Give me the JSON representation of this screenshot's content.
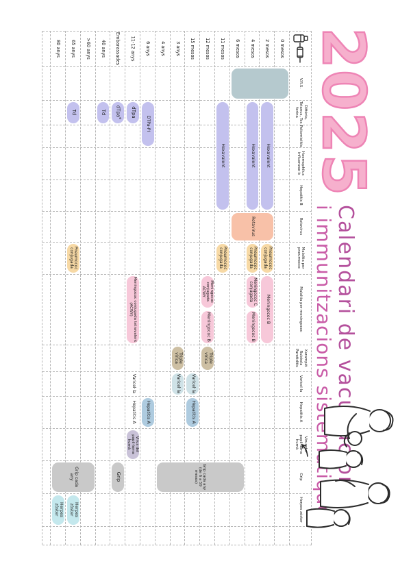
{
  "title": {
    "year": "2025",
    "line1": "Calendari de vacunacions",
    "line2": "i immunitzacions sistemàtiques"
  },
  "colors": {
    "vrs": "#b5c9ce",
    "purple": "#c3c1ee",
    "salmon": "#f8c1a8",
    "tan": "#f7d9a5",
    "pink": "#f7c8d9",
    "khaki": "#cdbfa3",
    "paleblue": "#cfe2e7",
    "steel": "#aecbdf",
    "lavender": "#c9c2d8",
    "gray": "#c9c9c9",
    "cyan": "#c4e8ed",
    "title_pink": "#ee84b5",
    "title_purple": "#b4509c",
    "grid": "#b5b5b5"
  },
  "columns": [
    {
      "label": "V.R.S."
    },
    {
      "label": "Diftèria, Tètanus, Tos ferina"
    },
    {
      "label": "Poliomielitis"
    },
    {
      "label": "Haemophilus influenzae b"
    },
    {
      "label": "Hepatitis B"
    },
    {
      "label": "Rotavirus"
    },
    {
      "label": "Malaltia per pneumococ"
    },
    {
      "label": "Malaltia per meningococ"
    },
    {
      "label": "Xarampió Rubèola Parotiditis"
    },
    {
      "label": "Varicel·la"
    },
    {
      "label": "Hepatitis A"
    },
    {
      "label": "Virus del papil·loma humà"
    },
    {
      "label": "Grip"
    },
    {
      "label": "Herpes zòster"
    }
  ],
  "age_rows": [
    {
      "label": "0 mesos"
    },
    {
      "label": "2 mesos"
    },
    {
      "label": "4 mesos"
    },
    {
      "label": "6 mesos"
    },
    {
      "label": "11 mesos"
    },
    {
      "label": "12 mesos"
    },
    {
      "label": "15 mesos"
    },
    {
      "label": "3 anys"
    },
    {
      "label": "4 anys"
    },
    {
      "label": "6 anys"
    },
    {
      "label": "11-12 anys"
    },
    {
      "label": "Embarassades"
    },
    {
      "label": "40 anys"
    },
    {
      "label": ">60 anys"
    },
    {
      "label": "65 anys"
    },
    {
      "label": "80 anys"
    }
  ],
  "entries": [
    {
      "c": 0,
      "r": 0,
      "rs": 4,
      "color": "vrs",
      "label": ""
    },
    {
      "c": 1,
      "cs": 4,
      "r": 1,
      "color": "purple",
      "label": "Hexavalent"
    },
    {
      "c": 1,
      "cs": 4,
      "r": 2,
      "color": "purple",
      "label": "Hexavalent"
    },
    {
      "c": 1,
      "cs": 4,
      "r": 4,
      "color": "purple",
      "label": "Hexavalent"
    },
    {
      "c": 1,
      "cs": 2,
      "r": 9,
      "color": "purple",
      "label": "DTPa-PI"
    },
    {
      "c": 1,
      "r": 10,
      "color": "purple",
      "label": "dTpa"
    },
    {
      "c": 1,
      "r": 11,
      "color": "purple",
      "label": "dTpa",
      "sup": "e"
    },
    {
      "c": 1,
      "r": 12,
      "color": "purple",
      "label": "Td"
    },
    {
      "c": 1,
      "r": 14,
      "color": "purple",
      "label": "Td"
    },
    {
      "c": 5,
      "r": 1,
      "rs": 3,
      "color": "salmon",
      "label": "Rotavirus"
    },
    {
      "c": 6,
      "r": 1,
      "color": "tan",
      "label": "Pneumococ conjugada"
    },
    {
      "c": 6,
      "r": 2,
      "color": "tan",
      "label": "Pneumococ conjugada"
    },
    {
      "c": 6,
      "r": 4,
      "color": "tan",
      "label": "Pneumococ conjugada"
    },
    {
      "c": 6,
      "r": 14,
      "color": "tan",
      "label": "Pneumococ conjugada"
    },
    {
      "c": 7,
      "r": 1,
      "color": "pink",
      "label": "Meningococ B"
    },
    {
      "c": 7,
      "r": 2,
      "half": "a",
      "color": "pink",
      "label": "Meningococ C conjugada"
    },
    {
      "c": 7,
      "r": 2,
      "half": "b",
      "color": "pink",
      "label": "Meningococ B"
    },
    {
      "c": 7,
      "r": 5,
      "half": "a",
      "color": "pink",
      "label": "Meningococ conjugada ACWY"
    },
    {
      "c": 7,
      "r": 5,
      "half": "b",
      "color": "pink",
      "label": "Meningococ B"
    },
    {
      "c": 7,
      "r": 10,
      "color": "pink",
      "label": "Meningococ conjugada tetravalent (ACWY)"
    },
    {
      "c": 8,
      "r": 5,
      "color": "khaki",
      "label": "Triple vírica"
    },
    {
      "c": 8,
      "r": 7,
      "color": "khaki",
      "label": "Triple vírica"
    },
    {
      "c": 9,
      "r": 6,
      "color": "paleblue",
      "label": "Varicel·la"
    },
    {
      "c": 9,
      "r": 7,
      "color": "paleblue",
      "label": "Varicel·la"
    },
    {
      "c": 9,
      "r": 10,
      "text_only": true,
      "label": "Varicel·la"
    },
    {
      "c": 10,
      "r": 6,
      "color": "steel",
      "label": "Hepatitis A"
    },
    {
      "c": 10,
      "r": 9,
      "color": "steel",
      "label": "Hepatitis A"
    },
    {
      "c": 10,
      "r": 10,
      "text_only": true,
      "label": "Hepatitis A"
    },
    {
      "c": 11,
      "r": 10,
      "color": "lavender",
      "label": "Virus del papil·loma humà"
    },
    {
      "c": 12,
      "r": 3,
      "rs": 6,
      "color": "gray",
      "label": "Grip cada any (de 6 a 59 mesos)"
    },
    {
      "c": 12,
      "r": 11,
      "color": "gray",
      "label": "Grip"
    },
    {
      "c": 12,
      "r": 13,
      "rs": 3,
      "color": "gray",
      "label": "Grip cada any"
    },
    {
      "c": 13,
      "r": 14,
      "color": "cyan",
      "label": "Herpes zòster"
    },
    {
      "c": 13,
      "r": 15,
      "color": "cyan",
      "label": "Herpes zòster"
    }
  ],
  "icons": {
    "corner": "syringe-and-vial-icon",
    "doodle": "arrow-doodle",
    "illustration": "family-line-drawing"
  }
}
